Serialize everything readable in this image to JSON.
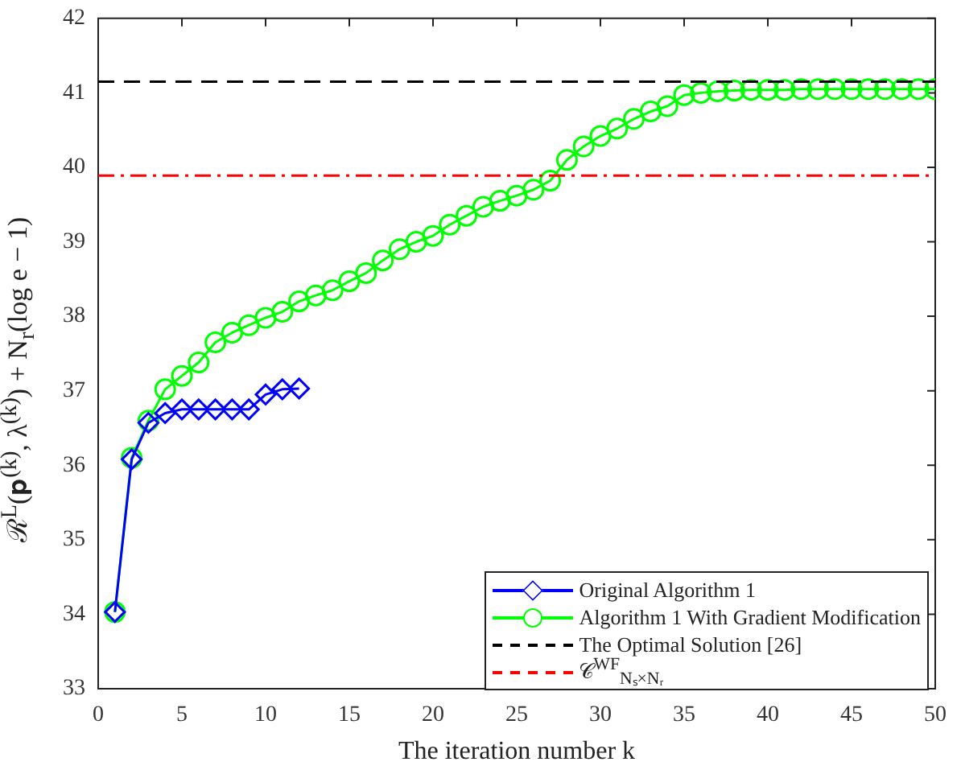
{
  "chart_data": {
    "type": "line",
    "xlabel": "The iteration number k",
    "ylabel": "ℛ$^{L}$(𝐩$^{(k)}$, λ$^{(k)}$) + N$_{r}$(log e − 1)",
    "xlim": [
      0,
      50
    ],
    "xticks": [
      0,
      5,
      10,
      15,
      20,
      25,
      30,
      35,
      40,
      45,
      50
    ],
    "ylim": [
      33,
      42
    ],
    "yticks": [
      33,
      34,
      35,
      36,
      37,
      38,
      39,
      40,
      41,
      42
    ],
    "grid": false,
    "legend": "bottom right",
    "series": [
      {
        "name": "Original Algorithm 1",
        "color": "#0000ff",
        "marker": "diamond",
        "x": [
          1,
          2,
          3,
          4,
          5,
          6,
          7,
          8,
          9,
          10,
          11,
          12
        ],
        "values": [
          34.03,
          36.08,
          36.57,
          36.7,
          36.75,
          36.75,
          36.75,
          36.75,
          36.75,
          36.95,
          37.02,
          37.03
        ]
      },
      {
        "name": "Algorithm 1 With Gradient Modification",
        "color": "#00ff00",
        "marker": "circle",
        "x": [
          1,
          2,
          3,
          4,
          5,
          6,
          7,
          8,
          9,
          10,
          11,
          12,
          13,
          14,
          15,
          16,
          17,
          18,
          19,
          20,
          21,
          22,
          23,
          24,
          25,
          26,
          27,
          28,
          29,
          30,
          31,
          32,
          33,
          34,
          35,
          36,
          37,
          38,
          39,
          40,
          41,
          42,
          43,
          44,
          45,
          46,
          47,
          48,
          49,
          50
        ],
        "values": [
          34.03,
          36.1,
          36.6,
          37.02,
          37.2,
          37.38,
          37.65,
          37.78,
          37.88,
          37.98,
          38.06,
          38.2,
          38.28,
          38.35,
          38.47,
          38.58,
          38.75,
          38.9,
          39.0,
          39.08,
          39.23,
          39.35,
          39.47,
          39.55,
          39.62,
          39.7,
          39.82,
          40.1,
          40.28,
          40.42,
          40.52,
          40.65,
          40.75,
          40.82,
          40.97,
          41.0,
          41.02,
          41.03,
          41.04,
          41.04,
          41.04,
          41.05,
          41.05,
          41.05,
          41.05,
          41.05,
          41.05,
          41.05,
          41.05,
          41.05
        ]
      }
    ],
    "ref_lines": [
      {
        "axis": "y",
        "value": 41.15,
        "label": "The Optimal Solution [26]",
        "color": "#000000",
        "line_style": "dashed"
      },
      {
        "axis": "y",
        "value": 39.89,
        "label": "𝒞$^{WF}$$_{Nₛ×Nᵣ}$",
        "color": "#ff0000",
        "line_style": "dashdot"
      }
    ]
  }
}
